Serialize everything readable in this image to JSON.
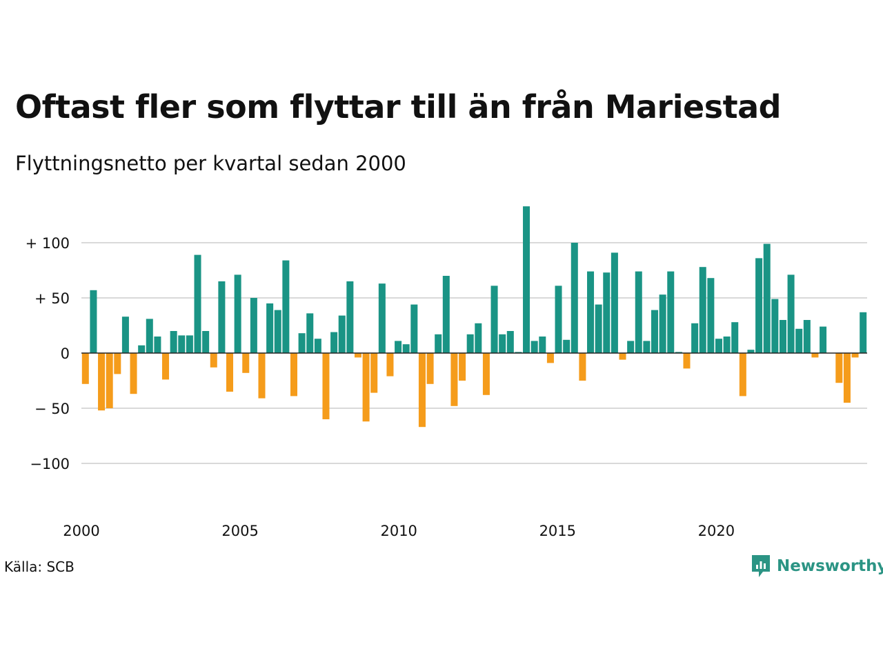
{
  "title": "Oftast fler som flyttar till än från Mariestad",
  "subtitle": "Flyttningsnetto per kvartal sedan 2000",
  "source": "Källa: SCB",
  "brand": {
    "name": "Newsworthy",
    "icon": "newsworthy-logo-icon",
    "color": "#2b9484"
  },
  "colors": {
    "positive": "#1a9485",
    "negative": "#f59c1b",
    "grid": "#d9d9d9"
  },
  "chart_data": {
    "type": "bar",
    "title": "Oftast fler som flyttar till än från Mariestad",
    "subtitle": "Flyttningsnetto per kvartal sedan 2000",
    "xlabel": "",
    "ylabel": "",
    "ylim": [
      -135,
      135
    ],
    "xlim": [
      2000,
      2024.75
    ],
    "grid": "horizontal",
    "x_ticks": [
      {
        "value": 2000,
        "label": "2000"
      },
      {
        "value": 2005,
        "label": "2005"
      },
      {
        "value": 2010,
        "label": "2010"
      },
      {
        "value": 2015,
        "label": "2015"
      },
      {
        "value": 2020,
        "label": "2020"
      }
    ],
    "y_ticks": [
      {
        "value": 100,
        "label": "+ 100"
      },
      {
        "value": 50,
        "label": "+  50"
      },
      {
        "value": 0,
        "label": "0"
      },
      {
        "value": -50,
        "label": "− 50"
      },
      {
        "value": -100,
        "label": "−100"
      }
    ],
    "start_year": 2000,
    "values": [
      -28,
      57,
      -52,
      -50,
      -19,
      33,
      -37,
      7,
      31,
      15,
      -24,
      20,
      16,
      16,
      89,
      20,
      -13,
      65,
      -35,
      71,
      -18,
      50,
      -41,
      45,
      39,
      84,
      -39,
      18,
      36,
      13,
      -60,
      19,
      34,
      65,
      -4,
      -62,
      -36,
      63,
      -21,
      11,
      8,
      44,
      -67,
      -28,
      17,
      70,
      -48,
      -25,
      17,
      27,
      -38,
      61,
      17,
      20,
      1,
      133,
      11,
      15,
      -9,
      61,
      12,
      100,
      -25,
      74,
      44,
      73,
      91,
      -6,
      11,
      74,
      11,
      39,
      53,
      74,
      1,
      -14,
      27,
      78,
      68,
      13,
      15,
      28,
      -39,
      3,
      86,
      99,
      49,
      30,
      71,
      22,
      30,
      -4,
      24,
      0,
      -27,
      -45,
      -4,
      37
    ]
  }
}
